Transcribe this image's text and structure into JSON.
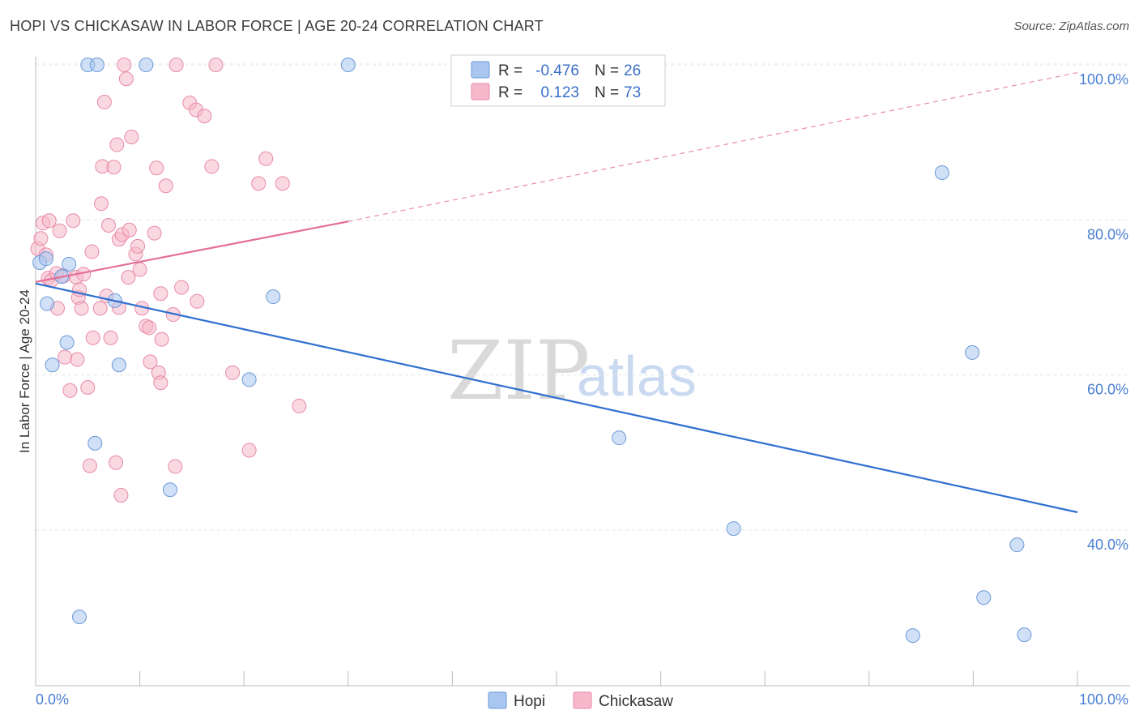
{
  "title": "HOPI VS CHICKASAW IN LABOR FORCE | AGE 20-24 CORRELATION CHART",
  "source": "Source: ZipAtlas.com",
  "watermark": {
    "zip": "ZIP",
    "atlas": "atlas"
  },
  "legend": {
    "rows": [
      {
        "r_label": "R =",
        "r_value": "-0.476",
        "n_label": "N =",
        "n_value": "26",
        "color": "#a8c6f0"
      },
      {
        "r_label": "R =",
        "r_value": "0.123",
        "n_label": "N =",
        "n_value": "73",
        "color": "#f6b8ca"
      }
    ]
  },
  "bottom_legend": {
    "hopi": "Hopi",
    "chickasaw": "Chickasaw"
  },
  "chart_data": {
    "type": "scatter",
    "title": "HOPI VS CHICKASAW IN LABOR FORCE | AGE 20-24 CORRELATION CHART",
    "xlabel": "",
    "ylabel": "In Labor Force | Age 20-24",
    "xlim": [
      0,
      100
    ],
    "ylim": [
      20,
      101
    ],
    "x_tick_labels": [
      "0.0%",
      "100.0%"
    ],
    "y_tick_labels": [
      {
        "value": 100,
        "label": "100.0%"
      },
      {
        "value": 80,
        "label": "80.0%"
      },
      {
        "value": 60,
        "label": "60.0%"
      },
      {
        "value": 40,
        "label": "40.0%"
      }
    ],
    "series": [
      {
        "name": "Hopi",
        "color": "#a8c6f0",
        "stroke": "#6c9ad8",
        "trend_color": "#2e6fd0",
        "trend": {
          "x0": 0,
          "y0": 71.8,
          "x1": 100,
          "y1": 42.3
        },
        "points": [
          [
            0.4,
            74.5
          ],
          [
            1.1,
            69.2
          ],
          [
            1.6,
            61.3
          ],
          [
            3.0,
            64.2
          ],
          [
            3.2,
            74.3
          ],
          [
            4.2,
            28.8
          ],
          [
            5.0,
            100
          ],
          [
            5.9,
            100
          ],
          [
            5.7,
            51.2
          ],
          [
            7.6,
            69.6
          ],
          [
            8.0,
            61.3
          ],
          [
            10.6,
            100
          ],
          [
            12.9,
            45.2
          ],
          [
            20.5,
            59.4
          ],
          [
            22.8,
            70.1
          ],
          [
            30.0,
            100
          ],
          [
            56.0,
            51.9
          ],
          [
            67.0,
            40.2
          ],
          [
            87.0,
            86.1
          ],
          [
            89.9,
            62.9
          ],
          [
            91.0,
            31.3
          ],
          [
            94.2,
            38.1
          ],
          [
            84.2,
            26.4
          ],
          [
            94.9,
            26.5
          ],
          [
            1.0,
            75.0
          ],
          [
            2.5,
            72.7
          ]
        ]
      },
      {
        "name": "Chickasaw",
        "color": "#f6b8ca",
        "stroke": "#e88aa6",
        "trend_color": "#e46f98",
        "trend": {
          "x0": 0,
          "y0": 72.0,
          "x1": 30,
          "y1": 79.8
        },
        "trend_dashed": {
          "x0": 30,
          "y0": 79.8,
          "x1": 100,
          "y1": 99.0
        },
        "points": [
          [
            0.2,
            76.3
          ],
          [
            0.5,
            77.6
          ],
          [
            0.7,
            79.6
          ],
          [
            1.0,
            75.5
          ],
          [
            1.3,
            79.9
          ],
          [
            1.2,
            72.5
          ],
          [
            1.5,
            72.2
          ],
          [
            2.0,
            73.1
          ],
          [
            2.1,
            68.6
          ],
          [
            2.3,
            78.6
          ],
          [
            2.7,
            72.8
          ],
          [
            2.8,
            62.3
          ],
          [
            3.3,
            58.0
          ],
          [
            3.6,
            79.9
          ],
          [
            3.9,
            72.6
          ],
          [
            4.0,
            62.0
          ],
          [
            4.1,
            70.0
          ],
          [
            4.2,
            71.0
          ],
          [
            4.4,
            68.6
          ],
          [
            4.6,
            73.0
          ],
          [
            5.0,
            58.4
          ],
          [
            5.2,
            48.3
          ],
          [
            5.4,
            75.9
          ],
          [
            5.5,
            64.8
          ],
          [
            6.2,
            68.6
          ],
          [
            6.3,
            82.1
          ],
          [
            6.4,
            86.9
          ],
          [
            6.6,
            95.2
          ],
          [
            7.0,
            79.3
          ],
          [
            7.2,
            64.8
          ],
          [
            7.5,
            86.8
          ],
          [
            7.7,
            48.7
          ],
          [
            7.8,
            89.7
          ],
          [
            8.0,
            68.7
          ],
          [
            8.0,
            77.5
          ],
          [
            8.2,
            44.5
          ],
          [
            8.3,
            78.1
          ],
          [
            8.5,
            100
          ],
          [
            8.7,
            98.2
          ],
          [
            9.0,
            78.7
          ],
          [
            9.2,
            90.7
          ],
          [
            9.6,
            75.6
          ],
          [
            9.8,
            76.6
          ],
          [
            10.2,
            68.6
          ],
          [
            10.6,
            66.3
          ],
          [
            10.9,
            66.1
          ],
          [
            11.0,
            61.7
          ],
          [
            11.4,
            78.3
          ],
          [
            11.6,
            86.7
          ],
          [
            11.8,
            60.3
          ],
          [
            12.0,
            59.0
          ],
          [
            12.1,
            64.6
          ],
          [
            12.5,
            84.4
          ],
          [
            13.2,
            67.8
          ],
          [
            13.4,
            48.2
          ],
          [
            13.5,
            100
          ],
          [
            14.8,
            95.1
          ],
          [
            15.4,
            94.2
          ],
          [
            16.2,
            93.4
          ],
          [
            16.9,
            86.9
          ],
          [
            17.3,
            100
          ],
          [
            18.9,
            60.3
          ],
          [
            20.5,
            50.3
          ],
          [
            21.4,
            84.7
          ],
          [
            22.1,
            87.9
          ],
          [
            23.7,
            84.7
          ],
          [
            25.3,
            56.0
          ],
          [
            6.8,
            70.2
          ],
          [
            8.9,
            72.6
          ],
          [
            10.0,
            73.6
          ],
          [
            12.0,
            70.5
          ],
          [
            14.0,
            71.3
          ],
          [
            15.5,
            69.5
          ]
        ]
      }
    ]
  }
}
